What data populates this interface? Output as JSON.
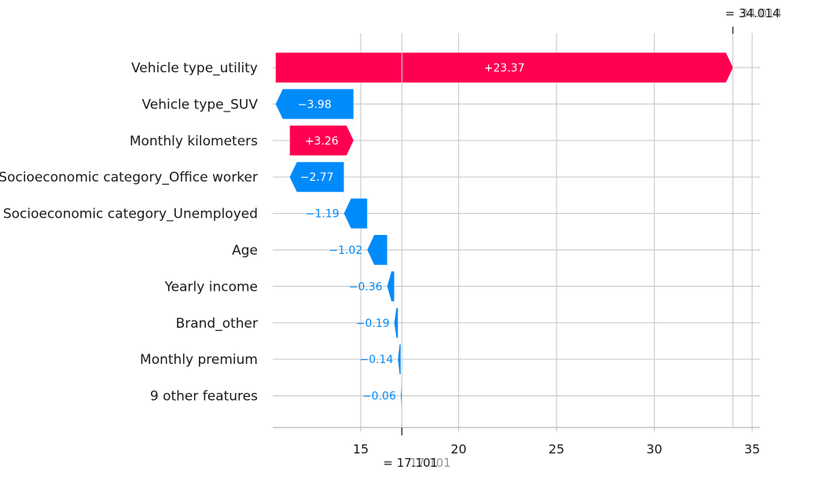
{
  "chart_data": {
    "type": "waterfall",
    "base_value": 17.101,
    "final_value": 34.014,
    "base_label": "= 17.101",
    "final_label": "= 34.014",
    "base_label_gray": "17.101",
    "final_label_gray": "34.014",
    "xlim": [
      10.5,
      35.4
    ],
    "xticks": [
      15,
      20,
      25,
      30,
      35
    ],
    "features": [
      {
        "name": "Vehicle type_utility",
        "value": 23.37,
        "label": "+23.37"
      },
      {
        "name": "Vehicle type_SUV",
        "value": -3.98,
        "label": "−3.98"
      },
      {
        "name": "Monthly kilometers",
        "value": 3.26,
        "label": "+3.26"
      },
      {
        "name": "Socioeconomic category_Office worker",
        "value": -2.77,
        "label": "−2.77"
      },
      {
        "name": "Socioeconomic category_Unemployed",
        "value": -1.19,
        "label": "−1.19"
      },
      {
        "name": "Age",
        "value": -1.02,
        "label": "−1.02"
      },
      {
        "name": "Yearly income",
        "value": -0.36,
        "label": "−0.36"
      },
      {
        "name": "Brand_other",
        "value": -0.19,
        "label": "−0.19"
      },
      {
        "name": "Monthly premium",
        "value": -0.14,
        "label": "−0.14"
      },
      {
        "name": "9 other features",
        "value": -0.06,
        "label": "−0.06"
      }
    ],
    "colors": {
      "positive": "#ff0051",
      "negative": "#008bfb",
      "grid": "#cccccc",
      "axis": "#bbbbbb"
    }
  }
}
